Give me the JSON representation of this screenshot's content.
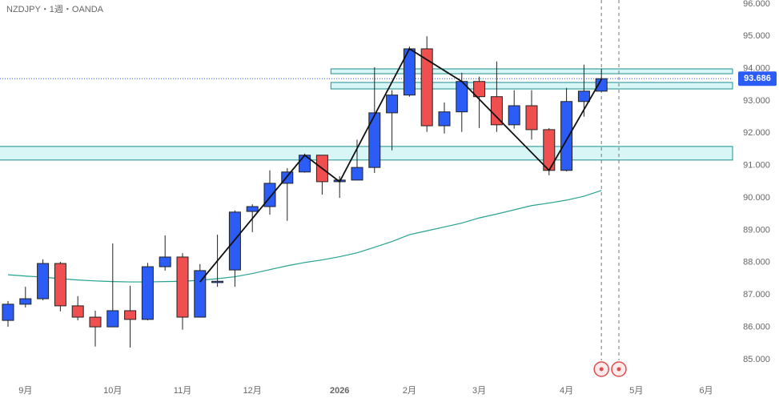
{
  "chart_data": {
    "type": "candlestick",
    "title": "NZDJPY・1週・OANDA",
    "categories": [
      null,
      "9月",
      null,
      null,
      null,
      null,
      "10月",
      null,
      null,
      null,
      "11月",
      null,
      null,
      null,
      "12月",
      null,
      null,
      null,
      null,
      "2026",
      null,
      null,
      null,
      "2月",
      null,
      null,
      null,
      "3月",
      null,
      null,
      null,
      null,
      "4月",
      null,
      null,
      null,
      "5月",
      null,
      null,
      null,
      "6月"
    ],
    "open": [
      86.21,
      86.71,
      86.88,
      87.97,
      86.66,
      86.31,
      86.01,
      86.51,
      86.24,
      87.87,
      88.17,
      86.31,
      87.38,
      87.77,
      89.58,
      89.73,
      90.45,
      90.8,
      91.32,
      90.5,
      90.55,
      90.94,
      92.63,
      93.18,
      94.61,
      92.23,
      92.66,
      93.6,
      93.13,
      92.26,
      92.85,
      92.11,
      90.85,
      92.98,
      93.3,
      null,
      null,
      null,
      null,
      null,
      null
    ],
    "high": [
      86.81,
      87.25,
      88.1,
      88.02,
      86.96,
      86.51,
      88.59,
      87.28,
      87.99,
      88.84,
      88.29,
      87.95,
      88.86,
      89.61,
      89.8,
      90.85,
      90.92,
      91.37,
      91.32,
      90.67,
      91.8,
      94.04,
      93.33,
      94.68,
      95.0,
      92.95,
      93.87,
      93.75,
      94.22,
      93.33,
      93.33,
      92.16,
      93.4,
      94.12,
      94.0,
      null,
      null,
      null,
      null,
      null,
      null
    ],
    "low": [
      86.01,
      86.61,
      86.83,
      86.49,
      86.21,
      85.4,
      86.01,
      85.37,
      86.21,
      87.75,
      85.92,
      86.31,
      87.25,
      87.25,
      88.94,
      89.48,
      89.29,
      90.78,
      90.1,
      90.0,
      90.55,
      90.77,
      91.47,
      93.13,
      92.04,
      91.99,
      92.04,
      92.16,
      92.04,
      92.14,
      91.8,
      90.7,
      90.82,
      92.51,
      93.28,
      null,
      null,
      null,
      null,
      null,
      null
    ],
    "close": [
      86.71,
      86.88,
      87.97,
      86.66,
      86.31,
      86.01,
      86.51,
      86.24,
      87.87,
      88.17,
      86.31,
      87.75,
      87.42,
      89.56,
      89.73,
      90.45,
      90.8,
      91.32,
      90.5,
      90.55,
      90.94,
      92.63,
      93.18,
      94.61,
      92.23,
      92.66,
      93.6,
      93.13,
      92.26,
      92.85,
      92.11,
      90.85,
      92.98,
      93.3,
      93.686,
      null,
      null,
      null,
      null,
      null,
      null
    ],
    "up_color": "#2b5cf5",
    "down_color": "#f04f4f",
    "ma": {
      "color": "#26a28f",
      "values": [
        87.62,
        87.58,
        87.55,
        87.5,
        87.46,
        87.43,
        87.41,
        87.4,
        87.4,
        87.41,
        87.42,
        87.45,
        87.5,
        87.56,
        87.66,
        87.78,
        87.9,
        88.0,
        88.08,
        88.18,
        88.3,
        88.47,
        88.65,
        88.86,
        88.98,
        89.1,
        89.22,
        89.38,
        89.5,
        89.63,
        89.76,
        89.84,
        89.93,
        90.05,
        90.23,
        null,
        null,
        null,
        null,
        null,
        null
      ]
    },
    "zigzag": [
      {
        "index": 11,
        "value": 87.4
      },
      {
        "index": 17,
        "value": 91.32
      },
      {
        "index": 19,
        "value": 90.5
      },
      {
        "index": 23,
        "value": 94.61
      },
      {
        "index": 26,
        "value": 93.6
      },
      {
        "index": 31,
        "value": 90.85
      },
      {
        "index": 34,
        "value": 93.67
      }
    ],
    "zones": [
      {
        "from": 91.17,
        "to": 91.59,
        "start": 0
      },
      {
        "from": 93.84,
        "to": 93.99,
        "start": 19
      },
      {
        "from": 93.37,
        "to": 93.57,
        "start": 19
      }
    ],
    "zone_color": "#d8f6f6",
    "zone_border": "#1b8f8f",
    "last_price": 93.686,
    "events": [
      34,
      35
    ],
    "ylim": [
      84.28,
      96.12
    ],
    "yticks": [
      {
        "value": 96,
        "label": "96.000"
      },
      {
        "value": 95,
        "label": "95.000"
      },
      {
        "value": 94,
        "label": "94.000"
      },
      {
        "value": 93,
        "label": "93.000"
      },
      {
        "value": 92,
        "label": "92.000"
      },
      {
        "value": 91,
        "label": "91.000"
      },
      {
        "value": 90,
        "label": "90.000"
      },
      {
        "value": 89,
        "label": "89.000"
      },
      {
        "value": 88,
        "label": "88.000"
      },
      {
        "value": 87,
        "label": "87.000"
      },
      {
        "value": 86,
        "label": "86.000"
      },
      {
        "value": 85,
        "label": "85.000"
      }
    ]
  }
}
